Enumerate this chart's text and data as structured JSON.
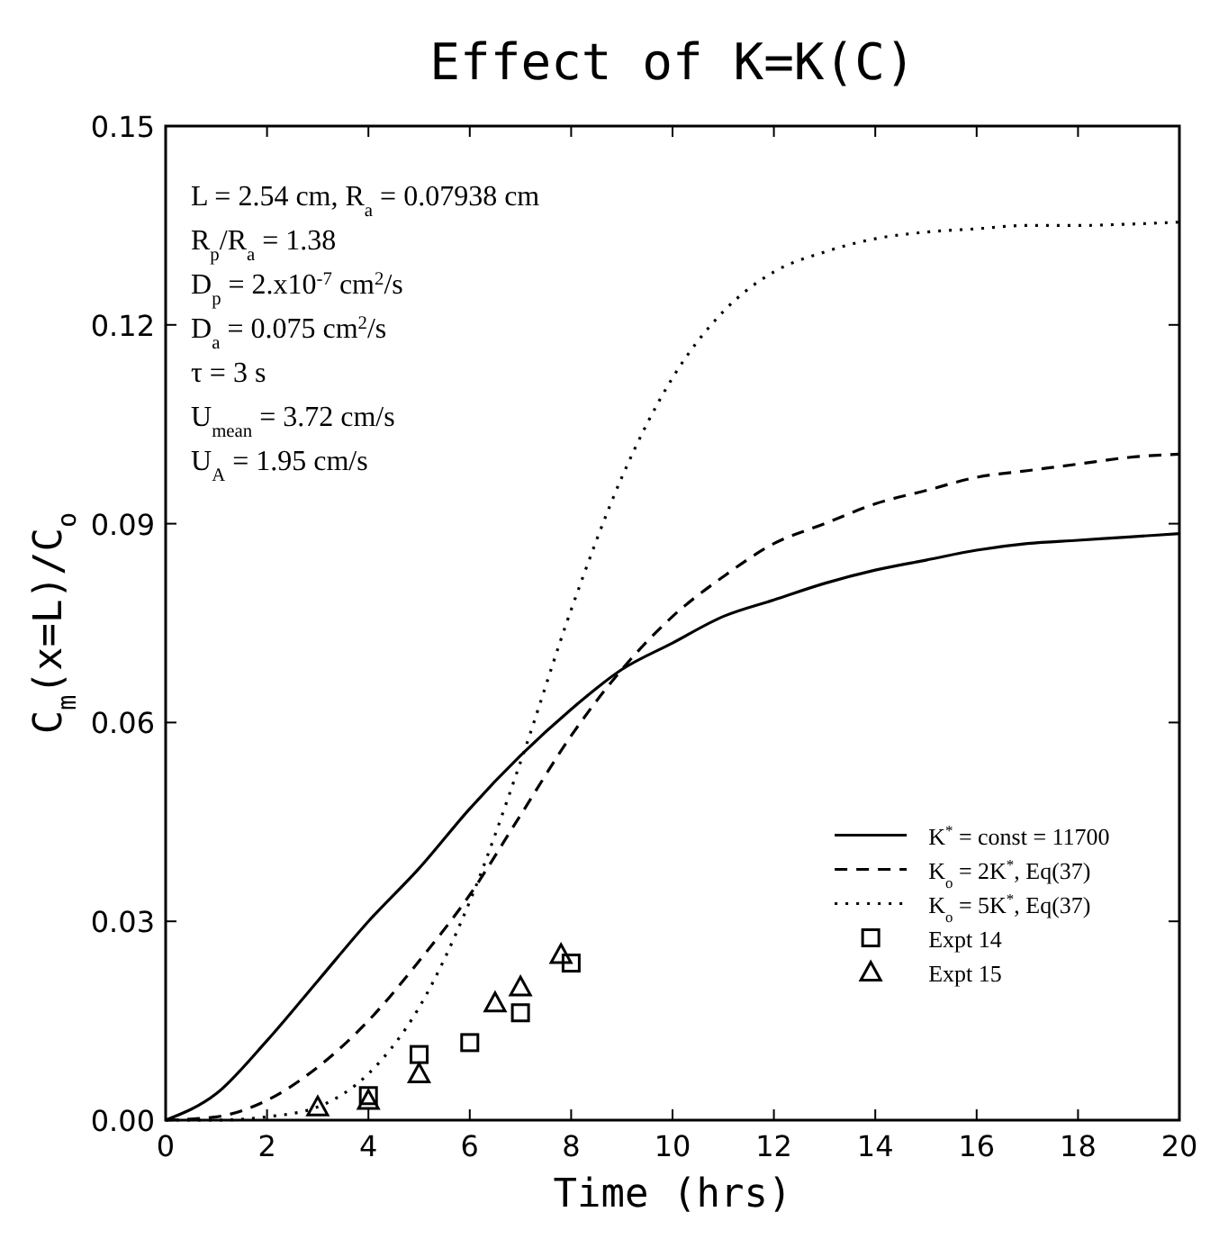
{
  "chart_data": {
    "type": "line",
    "title": "Effect of K=K(C)",
    "xlabel": "Time (hrs)",
    "ylabel": "C$_{m}$(x=L)/C$_{o}$",
    "xlim": [
      0,
      20
    ],
    "xticks": [
      0,
      2,
      4,
      6,
      8,
      10,
      12,
      14,
      16,
      18,
      20
    ],
    "ylim": [
      0,
      0.15
    ],
    "yticks": [
      {
        "value": 0,
        "label": "0.00"
      },
      {
        "value": 0.03,
        "label": "0.03"
      },
      {
        "value": 0.06,
        "label": "0.06"
      },
      {
        "value": 0.09,
        "label": "0.09"
      },
      {
        "value": 0.12,
        "label": "0.12"
      },
      {
        "value": 0.15,
        "label": "0.15"
      }
    ],
    "grid": false,
    "legend": "bottom right",
    "annotations": [
      "L = 2.54 cm, R$_{a}$ = 0.07938 cm",
      "R$_{p}$/R$_{a}$ = 1.38",
      "D$_{p}$ = 2.x10$^{-7}$ cm$^{2}$/s",
      "D$_{a}$ = 0.075 cm$^{2}$/s",
      "τ = 3 s",
      "U$_{mean}$ = 3.72 cm/s",
      "U$_{A}$ = 1.95 cm/s"
    ],
    "series": [
      {
        "name": "K$^{*}$ = const = 11700",
        "color": "#000000",
        "line_style": "solid",
        "marker": "none",
        "x": [
          0,
          1,
          2,
          3,
          4,
          5,
          6,
          7,
          8,
          9,
          10,
          11,
          12,
          13,
          14,
          15,
          16,
          17,
          18,
          19,
          20
        ],
        "values": [
          0,
          0.004,
          0.012,
          0.021,
          0.03,
          0.038,
          0.047,
          0.055,
          0.062,
          0.068,
          0.072,
          0.076,
          0.0785,
          0.081,
          0.083,
          0.0845,
          0.086,
          0.087,
          0.0875,
          0.088,
          0.0885
        ]
      },
      {
        "name": "K$_{o}$ = 2K$^{*}$, Eq(37)",
        "color": "#000000",
        "line_style": "dashed",
        "marker": "none",
        "x": [
          0,
          1,
          2,
          3,
          4,
          5,
          6,
          7,
          8,
          9,
          10,
          11,
          12,
          13,
          14,
          15,
          16,
          17,
          18,
          19,
          20
        ],
        "values": [
          0,
          0.0005,
          0.003,
          0.008,
          0.015,
          0.024,
          0.034,
          0.046,
          0.058,
          0.068,
          0.076,
          0.082,
          0.087,
          0.09,
          0.093,
          0.095,
          0.097,
          0.098,
          0.099,
          0.1,
          0.1005
        ]
      },
      {
        "name": "K$_{o}$ = 5K$^{*}$, Eq(37)",
        "color": "#000000",
        "line_style": "dotted",
        "marker": "none",
        "x": [
          0,
          1,
          2,
          3,
          4,
          5,
          6,
          7,
          8,
          9,
          10,
          11,
          12,
          13,
          14,
          15,
          16,
          17,
          18,
          19,
          20
        ],
        "values": [
          0,
          0,
          0.0005,
          0.002,
          0.007,
          0.017,
          0.033,
          0.054,
          0.077,
          0.097,
          0.112,
          0.122,
          0.128,
          0.131,
          0.133,
          0.134,
          0.1345,
          0.135,
          0.135,
          0.1352,
          0.1355
        ]
      },
      {
        "name": "Expt 14",
        "type": "scatter",
        "color": "#000000",
        "marker": "square",
        "x": [
          4,
          5,
          6,
          7,
          8
        ],
        "values": [
          0.0037,
          0.0099,
          0.0117,
          0.0162,
          0.0237
        ]
      },
      {
        "name": "Expt 15",
        "type": "scatter",
        "color": "#000000",
        "marker": "triangle",
        "x": [
          3,
          4,
          5,
          6.5,
          7,
          7.8
        ],
        "values": [
          0.002,
          0.003,
          0.007,
          0.0177,
          0.0201,
          0.025
        ]
      }
    ]
  }
}
